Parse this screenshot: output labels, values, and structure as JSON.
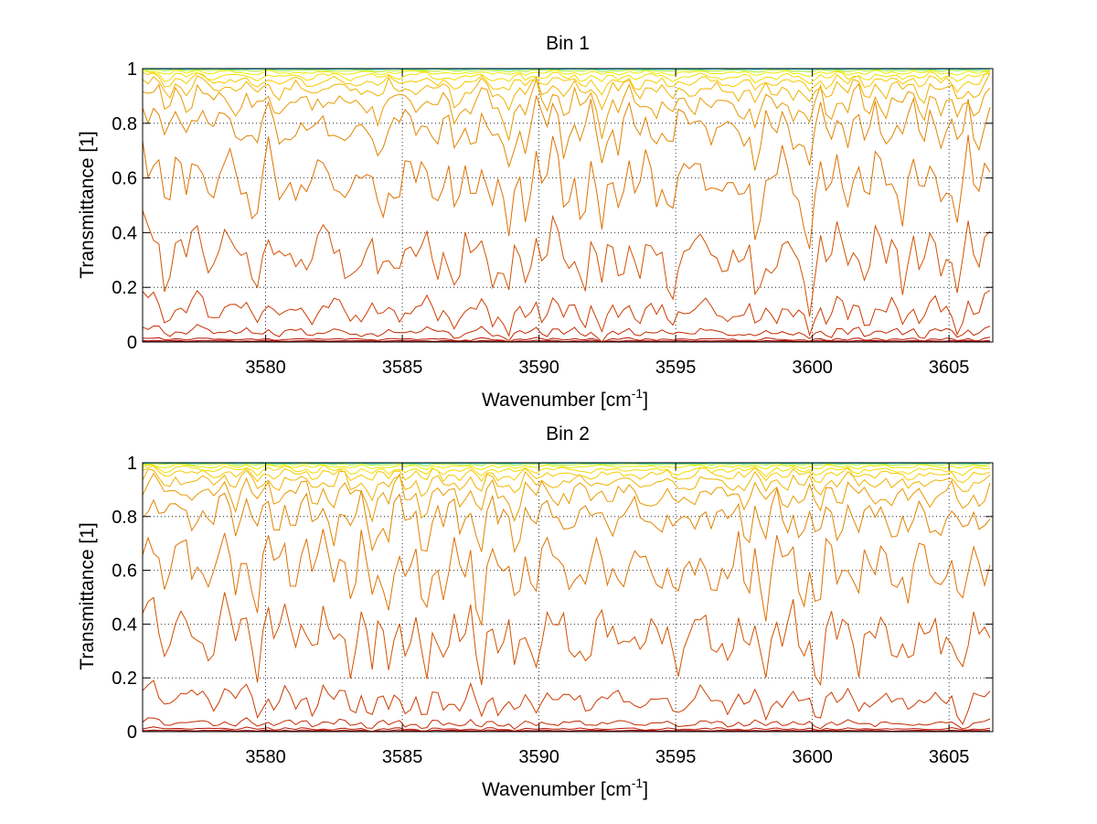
{
  "figure": {
    "background": "#ffffff"
  },
  "chart_data": [
    {
      "type": "line",
      "title": "Bin 1",
      "xlabel": "Wavenumber [cm",
      "xlabel_sup": "-1",
      "xlabel_close": "]",
      "ylabel": "Transmittance [1]",
      "xlim": [
        3575.5,
        3606.6
      ],
      "ylim": [
        0,
        1
      ],
      "xticks": [
        3580,
        3585,
        3590,
        3595,
        3600,
        3605
      ],
      "yticks": [
        0,
        0.2,
        0.4,
        0.6,
        0.8,
        1
      ],
      "xtick_labels": [
        "3580",
        "3585",
        "3590",
        "3595",
        "3600",
        "3605"
      ],
      "ytick_labels": [
        "0",
        "0.2",
        "0.4",
        "0.6",
        "0.8",
        "1"
      ],
      "grid": "dotted",
      "x_step": 0.2,
      "series_count": 15,
      "series_baselines": [
        0.001,
        0.004,
        0.01,
        0.035,
        0.11,
        0.31,
        0.58,
        0.78,
        0.87,
        0.92,
        0.95,
        0.97,
        0.985,
        0.993,
        0.998
      ],
      "series_colors": [
        "#8b0000",
        "#9f0000",
        "#b81400",
        "#c42a00",
        "#cc3c00",
        "#d25200",
        "#de7000",
        "#e08400",
        "#e89a00",
        "#f0b200",
        "#f6c800",
        "#f2dc00",
        "#e8ec00",
        "#a8e830",
        "#10d0d0"
      ],
      "dip_centers": [
        3576.4,
        3577.1,
        3578.1,
        3578.9,
        3579.6,
        3580.4,
        3580.9,
        3581.6,
        3582.3,
        3583.0,
        3583.6,
        3584.2,
        3584.9,
        3585.6,
        3586.3,
        3587.0,
        3587.6,
        3588.4,
        3588.9,
        3589.5,
        3590.2,
        3591.0,
        3591.6,
        3592.3,
        3592.9,
        3593.6,
        3594.2,
        3594.8,
        3595.5,
        3596.2,
        3596.8,
        3597.4,
        3598.0,
        3598.7,
        3599.4,
        3599.9,
        3600.6,
        3601.3,
        3602.0,
        3602.7,
        3603.3,
        3604.0,
        3604.7,
        3605.3,
        3606.0
      ],
      "dip_depths": [
        0.6,
        0.4,
        0.5,
        0.45,
        0.7,
        0.5,
        0.45,
        0.6,
        0.4,
        0.6,
        0.5,
        0.7,
        0.45,
        0.4,
        0.55,
        0.85,
        0.5,
        0.6,
        0.9,
        0.5,
        0.4,
        0.55,
        0.6,
        0.9,
        0.5,
        0.55,
        0.45,
        0.8,
        0.5,
        0.4,
        0.55,
        0.6,
        0.95,
        0.5,
        0.6,
        0.9,
        0.55,
        0.5,
        0.6,
        0.45,
        0.5,
        0.6,
        0.45,
        0.75,
        0.5
      ]
    },
    {
      "type": "line",
      "title": "Bin 2",
      "xlabel": "Wavenumber [cm",
      "xlabel_sup": "-1",
      "xlabel_close": "]",
      "ylabel": "Transmittance [1]",
      "xlim": [
        3575.5,
        3606.6
      ],
      "ylim": [
        0,
        1
      ],
      "xticks": [
        3580,
        3585,
        3590,
        3595,
        3600,
        3605
      ],
      "yticks": [
        0,
        0.2,
        0.4,
        0.6,
        0.8,
        1
      ],
      "xtick_labels": [
        "3580",
        "3585",
        "3590",
        "3595",
        "3600",
        "3605"
      ],
      "ytick_labels": [
        "0",
        "0.2",
        "0.4",
        "0.6",
        "0.8",
        "1"
      ],
      "grid": "dotted",
      "x_step": 0.2,
      "series_count": 15,
      "series_baselines": [
        0.001,
        0.004,
        0.01,
        0.03,
        0.115,
        0.35,
        0.6,
        0.79,
        0.88,
        0.925,
        0.955,
        0.972,
        0.986,
        0.994,
        0.998
      ],
      "series_colors": [
        "#8b0000",
        "#9f0000",
        "#b81400",
        "#c42a00",
        "#cc3c00",
        "#d25200",
        "#de7000",
        "#e08400",
        "#e89a00",
        "#f0b200",
        "#f6c800",
        "#f2dc00",
        "#e8ec00",
        "#a8e830",
        "#10d0d0"
      ],
      "dip_centers": [
        3576.4,
        3577.3,
        3578.0,
        3578.9,
        3579.7,
        3580.4,
        3581.1,
        3581.8,
        3582.5,
        3583.2,
        3583.9,
        3584.5,
        3585.2,
        3585.8,
        3586.5,
        3587.1,
        3587.8,
        3588.5,
        3589.1,
        3589.8,
        3590.5,
        3591.1,
        3591.8,
        3592.5,
        3593.1,
        3593.8,
        3594.4,
        3595.1,
        3595.7,
        3596.4,
        3597.0,
        3597.6,
        3598.3,
        3599.0,
        3599.6,
        3600.2,
        3600.9,
        3601.6,
        3602.2,
        3602.9,
        3603.5,
        3604.2,
        3604.8,
        3605.5,
        3606.2
      ],
      "dip_depths": [
        0.5,
        0.45,
        0.55,
        0.5,
        0.65,
        0.5,
        0.45,
        0.55,
        0.5,
        0.6,
        0.85,
        0.5,
        0.45,
        0.9,
        0.5,
        0.55,
        0.8,
        0.5,
        0.85,
        0.5,
        0.45,
        0.55,
        0.6,
        0.5,
        0.45,
        0.6,
        0.5,
        0.75,
        0.45,
        0.5,
        0.55,
        0.5,
        0.7,
        0.45,
        0.55,
        0.8,
        0.5,
        0.55,
        0.5,
        0.6,
        0.7,
        0.5,
        0.55,
        0.85,
        0.5
      ]
    }
  ]
}
